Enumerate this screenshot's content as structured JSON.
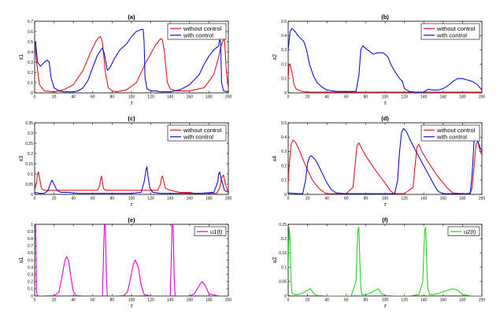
{
  "colors": {
    "red": "#e8141b",
    "blue": "#1010d8",
    "magenta": "#e000e0",
    "green": "#22d422"
  },
  "chart_data": [
    {
      "id": "a",
      "type": "line",
      "title": "(a)",
      "xlabel": "τ",
      "ylabel": "x1",
      "xlim": [
        0,
        200
      ],
      "ylim": [
        0,
        0.7
      ],
      "xticks": [
        0,
        20,
        40,
        60,
        80,
        100,
        120,
        140,
        160,
        180,
        200
      ],
      "yticks": [
        0,
        0.1,
        0.2,
        0.3,
        0.4,
        0.5,
        0.6,
        0.7
      ],
      "legend_position": "top-right",
      "series": [
        {
          "name": "without control",
          "color": "red",
          "x": [
            0,
            2,
            5,
            10,
            20,
            30,
            40,
            50,
            57,
            63,
            66,
            68,
            70,
            73,
            76,
            80,
            85,
            95,
            105,
            115,
            125,
            130,
            132,
            134,
            137,
            140,
            145,
            160,
            175,
            185,
            190,
            192,
            194,
            196,
            198,
            200
          ],
          "y": [
            0.5,
            0.3,
            0.08,
            0.02,
            0.01,
            0.03,
            0.08,
            0.22,
            0.38,
            0.5,
            0.54,
            0.55,
            0.5,
            0.2,
            0.05,
            0.02,
            0.01,
            0.03,
            0.1,
            0.3,
            0.47,
            0.53,
            0.52,
            0.4,
            0.1,
            0.04,
            0.02,
            0.02,
            0.05,
            0.18,
            0.35,
            0.44,
            0.5,
            0.53,
            0.2,
            0.05
          ]
        },
        {
          "name": "with control",
          "color": "blue",
          "x": [
            0,
            1,
            3,
            6,
            10,
            13,
            15,
            17,
            20,
            25,
            30,
            40,
            45,
            50,
            55,
            60,
            65,
            70,
            72,
            75,
            78,
            82,
            88,
            95,
            100,
            105,
            110,
            112,
            113,
            114,
            116,
            120,
            125,
            130,
            140,
            150,
            160,
            170,
            175,
            180,
            185,
            190,
            191,
            192,
            193,
            195,
            200
          ],
          "y": [
            0.47,
            0.5,
            0.3,
            0.26,
            0.3,
            0.32,
            0.3,
            0.15,
            0.05,
            0.02,
            0.01,
            0.01,
            0.02,
            0.05,
            0.12,
            0.25,
            0.37,
            0.44,
            0.38,
            0.22,
            0.25,
            0.33,
            0.42,
            0.48,
            0.55,
            0.6,
            0.62,
            0.62,
            0.5,
            0.15,
            0.04,
            0.02,
            0.02,
            0.01,
            0.01,
            0.03,
            0.08,
            0.18,
            0.28,
            0.36,
            0.42,
            0.46,
            0.52,
            0.5,
            0.1,
            0.02,
            0.01
          ]
        }
      ]
    },
    {
      "id": "b",
      "type": "line",
      "title": "(b)",
      "xlabel": "τ",
      "ylabel": "x2",
      "xlim": [
        0,
        200
      ],
      "ylim": [
        0,
        0.5
      ],
      "xticks": [
        0,
        20,
        40,
        60,
        80,
        100,
        120,
        140,
        160,
        180,
        200
      ],
      "yticks": [
        0,
        0.1,
        0.2,
        0.3,
        0.4,
        0.5
      ],
      "legend_position": "top-right",
      "series": [
        {
          "name": "without control",
          "color": "red",
          "x": [
            0,
            1,
            2,
            4,
            6,
            8,
            10,
            15,
            20,
            40,
            60,
            80,
            100,
            120,
            140,
            160,
            180,
            200
          ],
          "y": [
            0.1,
            0.2,
            0.2,
            0.14,
            0.06,
            0.03,
            0.02,
            0.01,
            0.005,
            0.005,
            0.005,
            0.005,
            0.005,
            0.005,
            0.005,
            0.005,
            0.005,
            0.005
          ]
        },
        {
          "name": "with control",
          "color": "blue",
          "x": [
            0,
            2,
            4,
            7,
            10,
            13,
            16,
            19,
            22,
            26,
            30,
            35,
            40,
            50,
            60,
            70,
            73,
            75,
            77,
            80,
            84,
            88,
            92,
            95,
            98,
            100,
            103,
            106,
            110,
            115,
            118,
            120,
            125,
            130,
            140,
            143,
            145,
            150,
            155,
            160,
            165,
            170,
            175,
            180,
            185,
            190,
            195,
            200
          ],
          "y": [
            0.3,
            0.43,
            0.45,
            0.43,
            0.4,
            0.38,
            0.36,
            0.3,
            0.2,
            0.12,
            0.07,
            0.04,
            0.02,
            0.01,
            0.01,
            0.01,
            0.12,
            0.3,
            0.33,
            0.31,
            0.29,
            0.27,
            0.28,
            0.28,
            0.28,
            0.27,
            0.25,
            0.2,
            0.15,
            0.1,
            0.08,
            0.03,
            0.01,
            0.005,
            0.005,
            0.02,
            0.025,
            0.02,
            0.02,
            0.03,
            0.05,
            0.08,
            0.1,
            0.1,
            0.09,
            0.08,
            0.06,
            0.02
          ]
        }
      ]
    },
    {
      "id": "c",
      "type": "line",
      "title": "(c)",
      "xlabel": "τ",
      "ylabel": "x3",
      "xlim": [
        0,
        200
      ],
      "ylim": [
        0,
        0.35
      ],
      "xticks": [
        0,
        20,
        40,
        60,
        80,
        100,
        120,
        140,
        160,
        180,
        200
      ],
      "yticks": [
        0,
        0.05,
        0.1,
        0.15,
        0.2,
        0.25,
        0.3,
        0.35
      ],
      "legend_position": "top-right",
      "series": [
        {
          "name": "without control",
          "color": "red",
          "x": [
            0,
            2,
            3,
            4,
            5,
            7,
            10,
            20,
            30,
            40,
            50,
            60,
            65,
            67,
            68,
            69,
            70,
            71,
            73,
            80,
            90,
            100,
            110,
            120,
            127,
            130,
            131,
            132,
            133,
            135,
            140,
            150,
            160,
            165,
            170,
            180,
            188,
            191,
            193,
            195,
            197,
            200
          ],
          "y": [
            0.02,
            0.06,
            0.1,
            0.11,
            0.08,
            0.03,
            0.02,
            0.02,
            0.02,
            0.02,
            0.02,
            0.02,
            0.02,
            0.04,
            0.07,
            0.09,
            0.06,
            0.03,
            0.02,
            0.02,
            0.02,
            0.02,
            0.02,
            0.02,
            0.02,
            0.05,
            0.08,
            0.09,
            0.07,
            0.03,
            0.02,
            0.01,
            0.01,
            0.005,
            0.005,
            0.005,
            0.005,
            0.03,
            0.08,
            0.095,
            0.05,
            0.01
          ]
        },
        {
          "name": "with control",
          "color": "blue",
          "x": [
            0,
            5,
            10,
            14,
            16,
            18,
            20,
            23,
            27,
            35,
            45,
            60,
            80,
            100,
            110,
            113,
            115,
            116,
            117,
            119,
            122,
            130,
            150,
            170,
            185,
            189,
            190,
            191,
            193,
            196,
            200
          ],
          "y": [
            0.01,
            0.005,
            0.005,
            0.02,
            0.05,
            0.07,
            0.05,
            0.02,
            0.01,
            0.01,
            0.005,
            0.005,
            0.005,
            0.005,
            0.01,
            0.06,
            0.12,
            0.135,
            0.09,
            0.03,
            0.01,
            0.005,
            0.005,
            0.005,
            0.01,
            0.06,
            0.1,
            0.11,
            0.07,
            0.02,
            0.01
          ]
        }
      ]
    },
    {
      "id": "d",
      "type": "line",
      "title": "(d)",
      "xlabel": "τ",
      "ylabel": "x4",
      "xlim": [
        0,
        200
      ],
      "ylim": [
        0,
        0.5
      ],
      "xticks": [
        0,
        20,
        40,
        60,
        80,
        100,
        120,
        140,
        160,
        180,
        200
      ],
      "yticks": [
        0,
        0.1,
        0.2,
        0.3,
        0.4,
        0.5
      ],
      "legend_position": "top-right",
      "series": [
        {
          "name": "without control",
          "color": "red",
          "x": [
            0,
            1,
            3,
            5,
            8,
            12,
            18,
            25,
            32,
            38,
            40,
            45,
            60,
            67,
            69,
            71,
            73,
            76,
            80,
            90,
            100,
            105,
            108,
            112,
            120,
            129,
            131,
            133,
            135,
            138,
            145,
            155,
            165,
            170,
            180,
            188,
            190,
            192,
            194,
            196,
            198,
            200
          ],
          "y": [
            0.08,
            0.2,
            0.35,
            0.38,
            0.36,
            0.3,
            0.2,
            0.1,
            0.04,
            0.01,
            0.005,
            0.005,
            0.005,
            0.05,
            0.2,
            0.34,
            0.36,
            0.32,
            0.27,
            0.17,
            0.08,
            0.03,
            0.01,
            0.005,
            0.005,
            0.05,
            0.2,
            0.33,
            0.35,
            0.3,
            0.22,
            0.12,
            0.04,
            0.01,
            0.005,
            0.005,
            0.05,
            0.2,
            0.35,
            0.37,
            0.3,
            0.28
          ]
        },
        {
          "name": "with control",
          "color": "blue",
          "x": [
            0,
            10,
            15,
            18,
            20,
            22,
            24,
            27,
            30,
            35,
            40,
            45,
            50,
            60,
            80,
            100,
            110,
            113,
            115,
            117,
            119,
            122,
            126,
            132,
            140,
            148,
            152,
            155,
            160,
            170,
            185,
            188,
            190,
            192,
            194,
            196,
            198,
            200
          ],
          "y": [
            0.01,
            0.005,
            0.005,
            0.1,
            0.22,
            0.26,
            0.27,
            0.25,
            0.22,
            0.15,
            0.08,
            0.03,
            0.01,
            0.005,
            0.005,
            0.005,
            0.005,
            0.1,
            0.3,
            0.43,
            0.46,
            0.44,
            0.38,
            0.3,
            0.2,
            0.1,
            0.05,
            0.02,
            0.005,
            0.005,
            0.005,
            0.01,
            0.15,
            0.38,
            0.4,
            0.37,
            0.33,
            0.3
          ]
        }
      ]
    },
    {
      "id": "e",
      "type": "line",
      "title": "(e)",
      "xlabel": "τ",
      "ylabel": "u1",
      "xlim": [
        0,
        200
      ],
      "ylim": [
        0,
        1
      ],
      "xticks": [
        0,
        20,
        40,
        60,
        80,
        100,
        120,
        140,
        160,
        180,
        200
      ],
      "yticks": [
        0,
        0.1,
        0.2,
        0.3,
        0.4,
        0.5,
        0.6,
        0.7,
        0.8,
        0.9,
        1
      ],
      "legend_position": "top-right",
      "series": [
        {
          "name": "u1(t)",
          "color": "magenta",
          "x": [
            0,
            1,
            2,
            3,
            4,
            10,
            20,
            25,
            28,
            31,
            33,
            35,
            37,
            40,
            43,
            50,
            60,
            70,
            71,
            72,
            73,
            74,
            75,
            85,
            92,
            96,
            99,
            102,
            104,
            107,
            110,
            113,
            120,
            130,
            140,
            141,
            142,
            143,
            144,
            145,
            150,
            160,
            165,
            168,
            171,
            173,
            176,
            180,
            190,
            200
          ],
          "y": [
            1,
            1,
            0.05,
            0.005,
            0,
            0,
            0.005,
            0.05,
            0.25,
            0.48,
            0.55,
            0.5,
            0.3,
            0.06,
            0.005,
            0,
            0,
            0,
            0.5,
            1,
            1,
            0.3,
            0,
            0,
            0.005,
            0.06,
            0.25,
            0.45,
            0.5,
            0.4,
            0.15,
            0.02,
            0,
            0,
            0,
            0.5,
            1,
            1,
            0.3,
            0,
            0,
            0,
            0.03,
            0.1,
            0.17,
            0.2,
            0.15,
            0.03,
            0,
            0
          ]
        }
      ]
    },
    {
      "id": "f",
      "type": "line",
      "title": "(f)",
      "xlabel": "τ",
      "ylabel": "u2",
      "xlim": [
        0,
        200
      ],
      "ylim": [
        0,
        0.25
      ],
      "xticks": [
        0,
        20,
        40,
        60,
        80,
        100,
        120,
        140,
        160,
        180,
        200
      ],
      "yticks": [
        0,
        0.05,
        0.1,
        0.15,
        0.2,
        0.25
      ],
      "legend_position": "top-right",
      "series": [
        {
          "name": "u2(t)",
          "color": "green",
          "x": [
            0,
            1,
            2,
            3,
            4,
            6,
            10,
            15,
            20,
            23,
            26,
            30,
            40,
            55,
            65,
            70,
            71,
            72,
            73,
            74,
            75,
            76,
            80,
            85,
            90,
            93,
            96,
            100,
            110,
            125,
            135,
            139,
            140,
            141,
            142,
            143,
            144,
            146,
            150,
            155,
            160,
            165,
            170,
            175,
            180,
            190,
            200
          ],
          "y": [
            0.1,
            0.24,
            0.2,
            0.05,
            0.01,
            0.005,
            0.005,
            0.01,
            0.02,
            0.025,
            0.01,
            0.002,
            0,
            0,
            0,
            0.05,
            0.15,
            0.23,
            0.24,
            0.12,
            0.03,
            0.005,
            0.005,
            0.01,
            0.02,
            0.025,
            0.01,
            0.002,
            0,
            0,
            0.005,
            0.05,
            0.15,
            0.23,
            0.24,
            0.12,
            0.03,
            0.005,
            0.005,
            0.008,
            0.015,
            0.02,
            0.025,
            0.02,
            0.005,
            0,
            0
          ]
        }
      ]
    }
  ]
}
